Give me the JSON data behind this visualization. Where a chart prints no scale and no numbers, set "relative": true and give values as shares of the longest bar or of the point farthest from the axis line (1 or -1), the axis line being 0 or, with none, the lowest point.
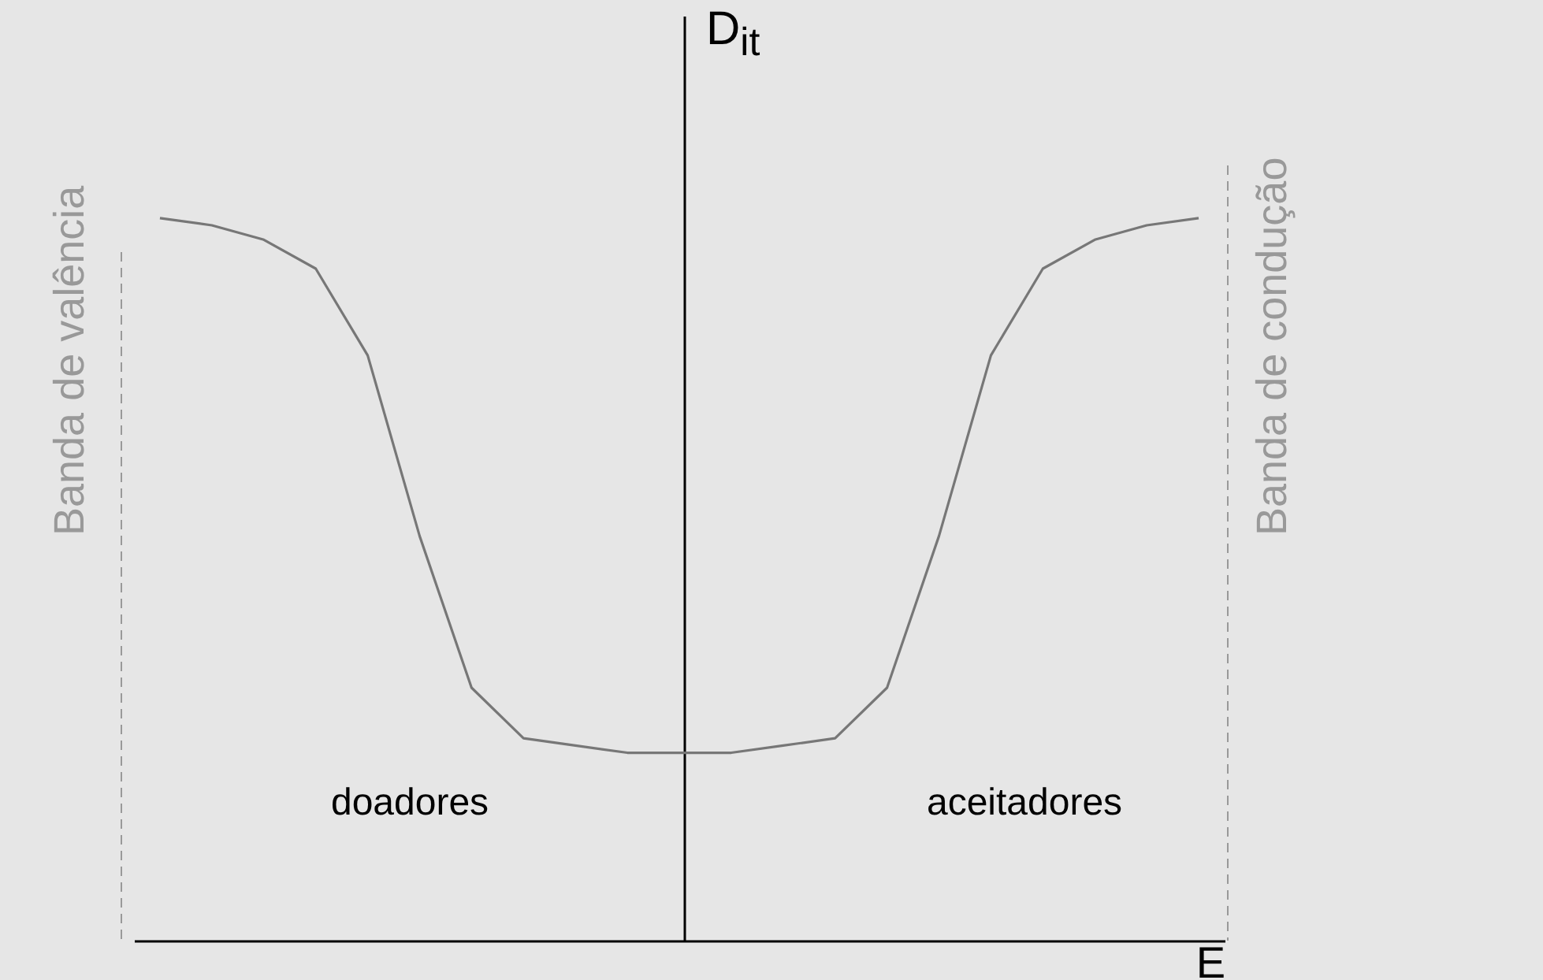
{
  "chart_data": {
    "type": "line",
    "relative": true,
    "xlabel": "E",
    "ylabel": "D$_{it}$",
    "categories": [
      null,
      null,
      null,
      null,
      null,
      null,
      null,
      null,
      null,
      null,
      null,
      null,
      null,
      null,
      null,
      null,
      null,
      null,
      null,
      null,
      null
    ],
    "series": [
      {
        "color": "#777777",
        "values": [
          1.0,
          0.99,
          0.97,
          0.93,
          0.81,
          0.56,
          0.35,
          0.28,
          0.27,
          0.26,
          0.26,
          0.26,
          0.27,
          0.28,
          0.35,
          0.56,
          0.81,
          0.93,
          0.97,
          0.99,
          1.0
        ]
      }
    ],
    "annotations": [
      "Banda de valência",
      "Banda de condução",
      "doadores",
      "aceitadores"
    ]
  }
}
